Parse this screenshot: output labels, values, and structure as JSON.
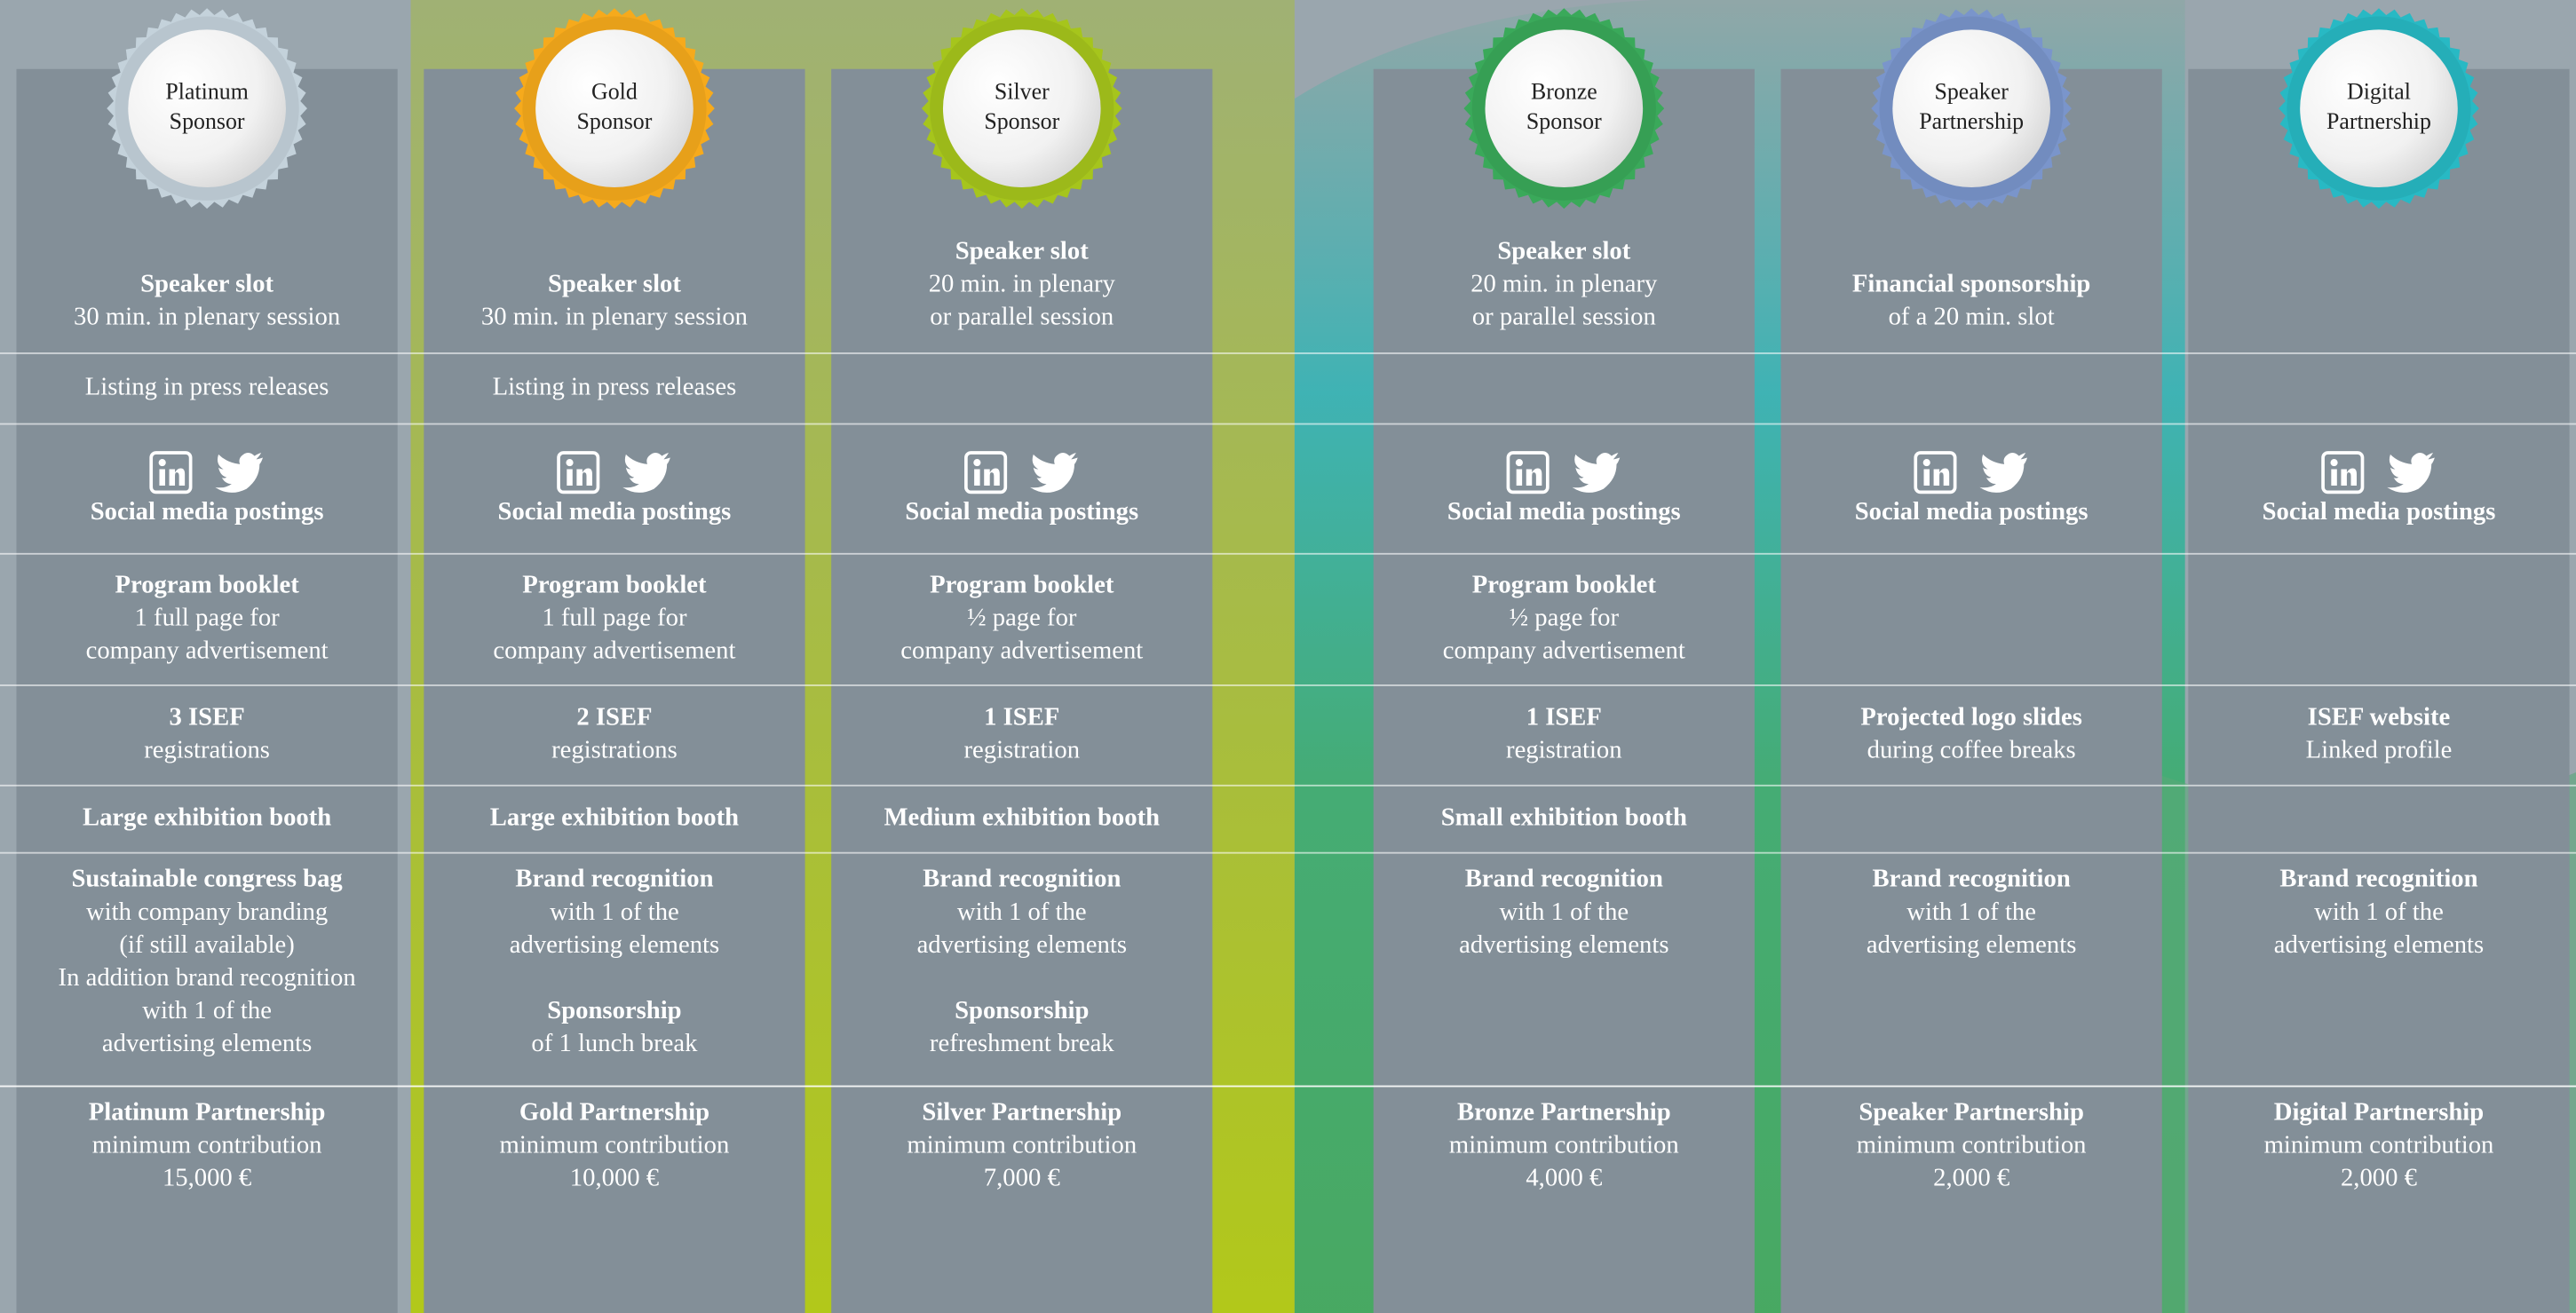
{
  "columns": [
    {
      "badge": [
        "Platinum",
        "Sponsor"
      ],
      "color": "#c4d2db",
      "cells": [
        [
          {
            "title": "Speaker slot",
            "lines": [
              "30 min. in plenary session"
            ]
          }
        ],
        [
          {
            "lines": [
              "Listing in press releases"
            ]
          }
        ],
        [
          {
            "icons": true,
            "title": "Social media postings"
          }
        ],
        [
          {
            "title": "Program booklet",
            "lines": [
              "1 full page for",
              "company advertisement"
            ]
          }
        ],
        [
          {
            "title": "3 ISEF",
            "lines": [
              "registrations"
            ]
          }
        ],
        [
          {
            "title": "Large exhibition booth"
          }
        ],
        [
          {
            "title": "Sustainable congress bag",
            "lines": [
              "with company branding",
              "(if still available)",
              "In addition brand recognition",
              "with 1 of the",
              "advertising elements"
            ]
          }
        ],
        [
          {
            "title": "Platinum Partnership",
            "lines": [
              "minimum contribution",
              "15,000 €"
            ]
          }
        ]
      ]
    },
    {
      "badge": [
        "Gold",
        "Sponsor"
      ],
      "color": "#f6aa1c",
      "cells": [
        [
          {
            "title": "Speaker slot",
            "lines": [
              "30 min. in plenary session"
            ]
          }
        ],
        [
          {
            "lines": [
              "Listing in press releases"
            ]
          }
        ],
        [
          {
            "icons": true,
            "title": "Social media postings"
          }
        ],
        [
          {
            "title": "Program booklet",
            "lines": [
              "1 full page for",
              "company advertisement"
            ]
          }
        ],
        [
          {
            "title": "2 ISEF",
            "lines": [
              "registrations"
            ]
          }
        ],
        [
          {
            "title": "Large exhibition booth"
          }
        ],
        [
          {
            "title": "Brand recognition",
            "lines": [
              "with 1 of the",
              "advertising elements"
            ]
          },
          {
            "title": "Sponsorship",
            "lines": [
              "of 1 lunch break"
            ]
          }
        ],
        [
          {
            "title": "Gold Partnership",
            "lines": [
              "minimum contribution",
              "10,000 €"
            ]
          }
        ]
      ]
    },
    {
      "badge": [
        "Silver",
        "Sponsor"
      ],
      "color": "#a6c51c",
      "cells": [
        [
          {
            "title": "Speaker slot",
            "lines": [
              "20 min. in plenary",
              "or parallel session"
            ]
          }
        ],
        [],
        [
          {
            "icons": true,
            "title": "Social media postings"
          }
        ],
        [
          {
            "title": "Program booklet",
            "lines": [
              "½ page for",
              "company advertisement"
            ]
          }
        ],
        [
          {
            "title": "1 ISEF",
            "lines": [
              "registration"
            ]
          }
        ],
        [
          {
            "title": "Medium exhibition booth"
          }
        ],
        [
          {
            "title": "Brand recognition",
            "lines": [
              "with 1 of the",
              "advertising elements"
            ]
          },
          {
            "title": "Sponsorship",
            "lines": [
              "refreshment break"
            ]
          }
        ],
        [
          {
            "title": "Silver Partnership",
            "lines": [
              "minimum contribution",
              "7,000 €"
            ]
          }
        ]
      ]
    },
    {
      "badge": [
        "Bronze",
        "Sponsor"
      ],
      "color": "#3aa95a",
      "cells": [
        [
          {
            "title": "Speaker slot",
            "lines": [
              "20 min. in plenary",
              "or parallel session"
            ]
          }
        ],
        [],
        [
          {
            "icons": true,
            "title": "Social media postings"
          }
        ],
        [
          {
            "title": "Program booklet",
            "lines": [
              "½ page for",
              "company advertisement"
            ]
          }
        ],
        [
          {
            "title": "1 ISEF",
            "lines": [
              "registration"
            ]
          }
        ],
        [
          {
            "title": "Small exhibition booth"
          }
        ],
        [
          {
            "title": "Brand recognition",
            "lines": [
              "with 1 of the",
              "advertising elements"
            ]
          }
        ],
        [
          {
            "title": "Bronze Partnership",
            "lines": [
              "minimum contribution",
              "4,000 €"
            ]
          }
        ]
      ]
    },
    {
      "badge": [
        "Speaker",
        "Partnership"
      ],
      "color": "#7a95cb",
      "cells": [
        [
          {
            "title": "Financial sponsorship",
            "lines": [
              "of a 20 min. slot"
            ]
          }
        ],
        [],
        [
          {
            "icons": true,
            "title": "Social media postings"
          }
        ],
        [],
        [
          {
            "title": "Projected logo slides",
            "lines": [
              "during coffee breaks"
            ]
          }
        ],
        [],
        [
          {
            "title": "Brand recognition",
            "lines": [
              "with 1 of the",
              "advertising elements"
            ]
          }
        ],
        [
          {
            "title": "Speaker Partnership",
            "lines": [
              "minimum contribution",
              "2,000 €"
            ]
          }
        ]
      ]
    },
    {
      "badge": [
        "Digital",
        "Partnership"
      ],
      "color": "#28b9c4",
      "cells": [
        [],
        [],
        [
          {
            "icons": true,
            "title": "Social media postings"
          }
        ],
        [],
        [
          {
            "title": "ISEF website",
            "lines": [
              "Linked profile"
            ]
          }
        ],
        [],
        [
          {
            "title": "Brand recognition",
            "lines": [
              "with 1 of the",
              "advertising elements"
            ]
          }
        ],
        [
          {
            "title": "Digital Partnership",
            "lines": [
              "minimum contribution",
              "2,000 €"
            ]
          }
        ]
      ]
    }
  ]
}
